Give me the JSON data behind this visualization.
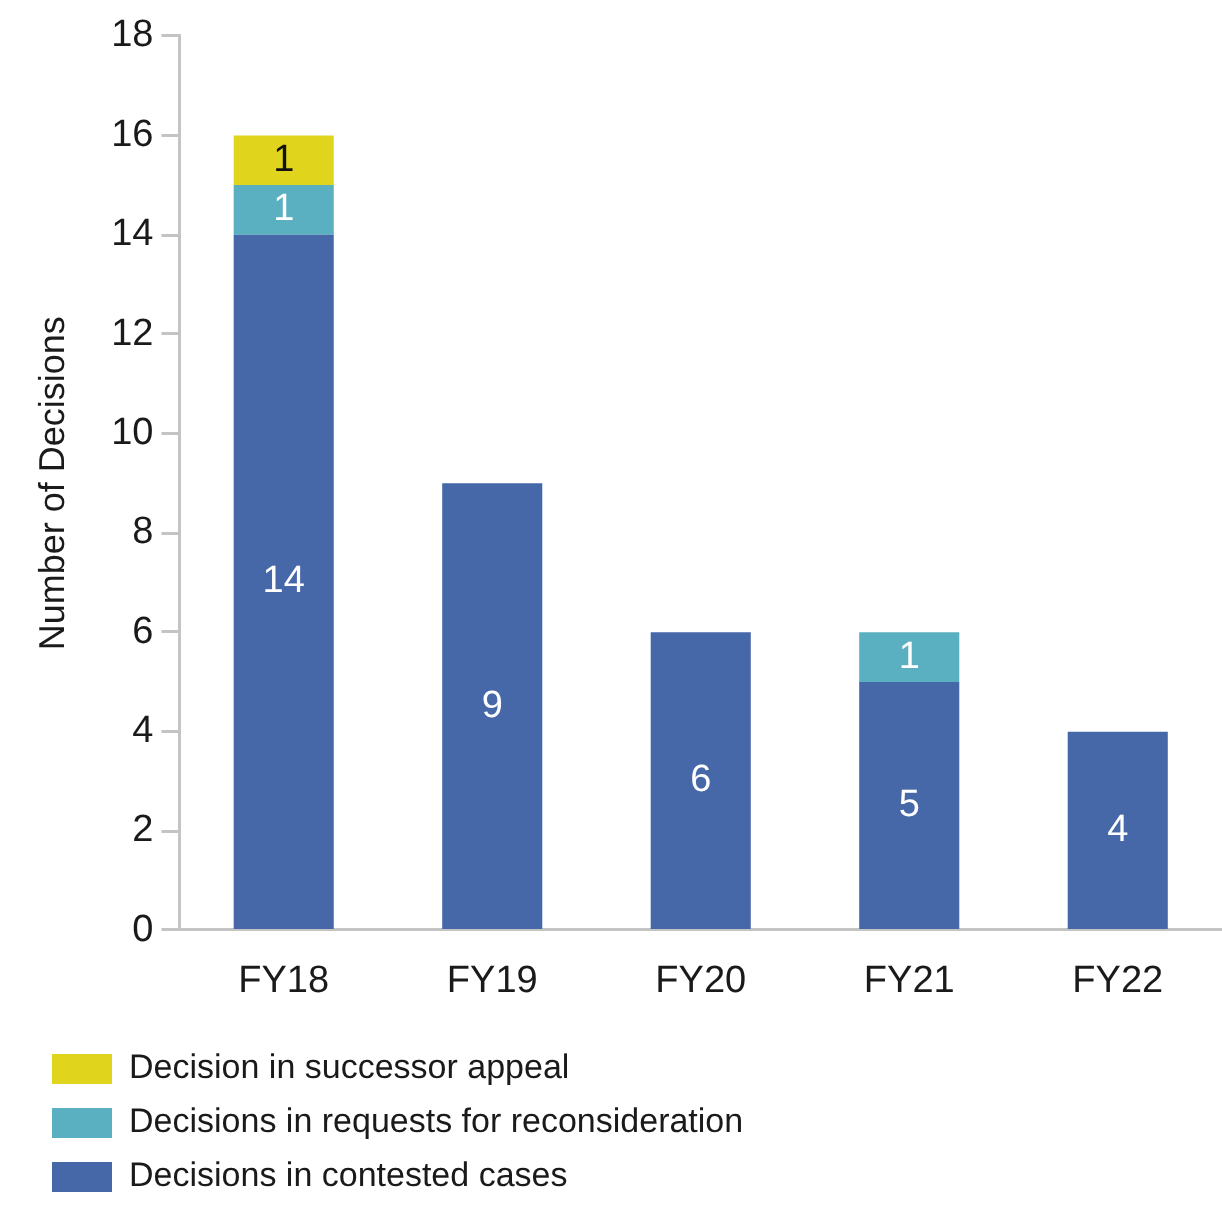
{
  "chart_data": {
    "type": "bar",
    "ylabel": "Number of Decisions",
    "categories": [
      "FY18",
      "FY19",
      "FY20",
      "FY21",
      "FY22"
    ],
    "series": [
      {
        "name": "Decisions in contested cases",
        "color": "#4667a8",
        "values": [
          14,
          9,
          6,
          5,
          4
        ]
      },
      {
        "name": "Decisions in requests for reconsideration",
        "color": "#5aafc0",
        "values": [
          1,
          null,
          null,
          1,
          null
        ]
      },
      {
        "name": "Decision in successor appeal",
        "color": "#e0d51c",
        "values": [
          1,
          null,
          null,
          null,
          null
        ]
      }
    ],
    "stacked": true,
    "ylim": [
      0,
      18
    ],
    "yticks": [
      0,
      2,
      4,
      6,
      8,
      10,
      12,
      14,
      16,
      18
    ],
    "grid": false,
    "legend": "bottom left",
    "data_labels": true
  }
}
